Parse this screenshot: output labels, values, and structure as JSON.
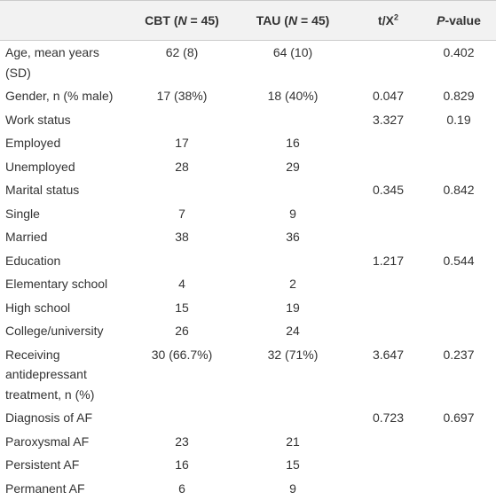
{
  "header": [
    [
      "CBT (",
      "N",
      " = 45)"
    ],
    [
      "TAU (",
      "N",
      " = 45)"
    ],
    [
      "t/X",
      "2"
    ],
    [
      "P",
      "-value"
    ]
  ],
  "rows": [
    [
      "Age, mean years (SD)",
      "62 (8)",
      "64 (10)",
      null,
      "0.402"
    ],
    [
      "Gender, n (% male)",
      "17 (38%)",
      "18 (40%)",
      "0.047",
      "0.829"
    ],
    [
      "Work status",
      null,
      null,
      "3.327",
      "0.19"
    ],
    [
      "Employed",
      "17",
      "16",
      null,
      null
    ],
    [
      "Unemployed",
      "28",
      "29",
      null,
      null
    ],
    [
      "Marital status",
      null,
      null,
      "0.345",
      "0.842"
    ],
    [
      "Single",
      "7",
      "9",
      null,
      null
    ],
    [
      "Married",
      "38",
      "36",
      null,
      null
    ],
    [
      "Education",
      null,
      null,
      "1.217",
      "0.544"
    ],
    [
      "Elementary school",
      "4",
      "2",
      null,
      null
    ],
    [
      "High school",
      "15",
      "19",
      null,
      null
    ],
    [
      "College/university",
      "26",
      "24",
      null,
      null
    ],
    [
      "Receiving antidepressant treatment, n (%)",
      "30 (66.7%)",
      "32 (71%)",
      "3.647",
      "0.237"
    ],
    [
      "Diagnosis of AF",
      null,
      null,
      "0.723",
      "0.697"
    ],
    [
      "Paroxysmal AF",
      "23",
      "21",
      null,
      null
    ],
    [
      "Persistent AF",
      "16",
      "15",
      null,
      null
    ],
    [
      "Permanent AF",
      "6",
      "9",
      null,
      null
    ]
  ]
}
